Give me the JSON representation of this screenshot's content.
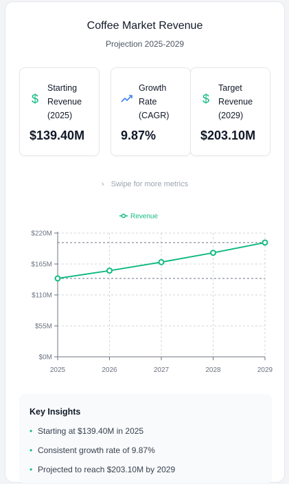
{
  "header": {
    "title": "Coffee Market Revenue",
    "subtitle": "Projection 2025-2029"
  },
  "metrics": [
    {
      "icon": "dollar-icon",
      "label": "Starting Revenue (2025)",
      "value": "$139.40M"
    },
    {
      "icon": "trending-up-icon",
      "label": "Growth Rate (CAGR)",
      "value": "9.87%"
    },
    {
      "icon": "dollar-icon",
      "label": "Target Revenue (2029)",
      "value": "$203.10M"
    }
  ],
  "swipe_hint": "Swipe for more metrics",
  "colors": {
    "accent": "#10b981",
    "trend_icon": "#3b82f6"
  },
  "chart_data": {
    "type": "line",
    "categories": [
      "2025",
      "2026",
      "2027",
      "2028",
      "2029"
    ],
    "series": [
      {
        "name": "Revenue",
        "values": [
          139.4,
          153.17,
          168.3,
          184.93,
          203.1
        ],
        "color": "#10b981"
      }
    ],
    "yticks": [
      "$0M",
      "$55M",
      "$110M",
      "$165M",
      "$220M"
    ],
    "ylim": [
      0,
      220
    ],
    "reference_lines": [
      139.4,
      203.1
    ],
    "grid": true,
    "legend": "top-center"
  },
  "insights": {
    "title": "Key Insights",
    "items": [
      "Starting at $139.40M in 2025",
      "Consistent growth rate of 9.87%",
      "Projected to reach $203.10M by 2029"
    ]
  }
}
